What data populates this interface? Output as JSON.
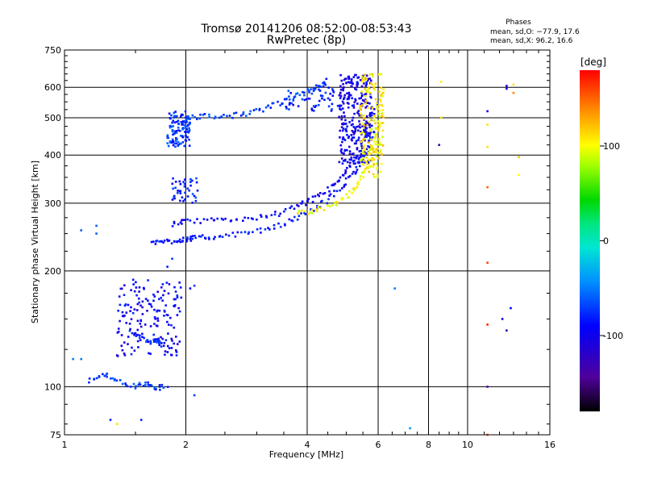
{
  "chart_data": {
    "type": "scatter",
    "title": "Tromsø 20141206 08:52:00-08:53:43",
    "subtitle": "RwPretec (8p)",
    "xlabel": "Frequency [MHz]",
    "ylabel": "Stationary phase Virtual Height [km]",
    "x_scale": "log",
    "y_scale": "log",
    "xlim": [
      1,
      16
    ],
    "ylim": [
      75,
      750
    ],
    "x_ticks": [
      1,
      2,
      4,
      6,
      8,
      10,
      16
    ],
    "x_tick_labels": [
      "1",
      "2",
      "4",
      "6",
      "8",
      "10",
      "16"
    ],
    "y_ticks": [
      75,
      100,
      200,
      300,
      400,
      500,
      600,
      750
    ],
    "y_tick_labels": [
      "75",
      "100",
      "200",
      "300",
      "400",
      "500",
      "600",
      "750"
    ],
    "grid": true,
    "stats": {
      "header": "Phases",
      "line1": "mean, sd,O: −77.9, 17.6",
      "line2": "mean, sd,X:  96.2, 16.6"
    },
    "colorbar": {
      "label": "[deg]",
      "range": [
        -180,
        180
      ],
      "ticks": [
        100,
        0,
        -100
      ],
      "tick_labels": [
        "100",
        "0",
        "-100"
      ]
    },
    "series": [
      {
        "traces": [
          {
            "x": [
              1.65,
              1.75,
              1.9,
              2.0,
              2.1,
              2.3,
              2.6,
              3.0,
              3.4,
              3.8,
              4.2,
              4.6,
              5.0,
              5.3,
              5.6,
              5.9
            ],
            "y": [
              237,
              238,
              240,
              242,
              243,
              245,
              248,
              253,
              262,
              275,
              292,
              312,
              340,
              370,
              410,
              470
            ],
            "phase": -85
          },
          {
            "x": [
              1.85,
              2.0,
              2.3,
              2.6,
              3.0,
              3.4,
              3.8,
              4.1,
              4.5,
              4.8,
              5.1,
              5.4,
              5.7,
              6.0
            ],
            "y": [
              265,
              268,
              270,
              272,
              275,
              282,
              295,
              305,
              325,
              345,
              370,
              410,
              470,
              560
            ],
            "phase": -95
          },
          {
            "x": [
              2.0,
              2.2,
              2.5,
              2.8,
              3.1,
              3.4,
              3.7,
              4.0,
              4.3,
              4.5
            ],
            "y": [
              500,
              505,
              505,
              510,
              525,
              545,
              565,
              585,
              605,
              625
            ],
            "phase": -70
          },
          {
            "x": [
              1.45,
              1.55,
              1.65,
              1.7,
              1.75
            ],
            "y": [
              140,
              135,
              130,
              132,
              128
            ],
            "phase": -80
          },
          {
            "x": [
              1.15,
              1.25,
              1.35,
              1.5,
              1.6,
              1.7,
              1.8
            ],
            "y": [
              104,
              108,
              103,
              100,
              102,
              99,
              101
            ],
            "phase": -70
          }
        ],
        "clusters": [
          {
            "x": [
              1.8,
              2.05
            ],
            "y": [
              420,
              520
            ],
            "n": 120,
            "phase": -75
          },
          {
            "x": [
              1.85,
              2.15
            ],
            "y": [
              300,
              350
            ],
            "n": 40,
            "phase": -80
          },
          {
            "x": [
              1.35,
              1.95
            ],
            "y": [
              120,
              190
            ],
            "n": 160,
            "phase": -95
          },
          {
            "x": [
              4.8,
              5.8
            ],
            "y": [
              380,
              650
            ],
            "n": 280,
            "phase": -100
          },
          {
            "x": [
              3.5,
              4.8
            ],
            "y": [
              520,
              600
            ],
            "n": 50,
            "phase": -80
          }
        ]
      },
      {
        "traces": [
          {
            "x": [
              3.8,
              4.2,
              4.6,
              5.0,
              5.3,
              5.5,
              5.7,
              5.9,
              6.05,
              6.15
            ],
            "y": [
              282,
              288,
              296,
              310,
              330,
              355,
              390,
              440,
              510,
              610
            ],
            "phase": 100
          }
        ],
        "clusters": [
          {
            "x": [
              5.4,
              6.2
            ],
            "y": [
              350,
              650
            ],
            "n": 150,
            "phase": 105
          }
        ]
      }
    ],
    "sparse_points": [
      {
        "x": 8.6,
        "y": 620,
        "phase": 105
      },
      {
        "x": 8.6,
        "y": 500,
        "phase": 110
      },
      {
        "x": 8.5,
        "y": 425,
        "phase": -120
      },
      {
        "x": 12.5,
        "y": 605,
        "phase": -100
      },
      {
        "x": 12.5,
        "y": 595,
        "phase": -100
      },
      {
        "x": 11.2,
        "y": 520,
        "phase": -100
      },
      {
        "x": 11.2,
        "y": 480,
        "phase": 110
      },
      {
        "x": 11.2,
        "y": 420,
        "phase": 110
      },
      {
        "x": 11.2,
        "y": 330,
        "phase": 150
      },
      {
        "x": 11.2,
        "y": 210,
        "phase": 160
      },
      {
        "x": 11.2,
        "y": 145,
        "phase": 170
      },
      {
        "x": 11.2,
        "y": 100,
        "phase": -140
      },
      {
        "x": 11.2,
        "y": 75,
        "phase": 155
      },
      {
        "x": 13.0,
        "y": 610,
        "phase": 110
      },
      {
        "x": 13.0,
        "y": 580,
        "phase": 140
      },
      {
        "x": 13.4,
        "y": 395,
        "phase": 120
      },
      {
        "x": 13.4,
        "y": 355,
        "phase": 100
      },
      {
        "x": 12.2,
        "y": 150,
        "phase": -100
      },
      {
        "x": 12.8,
        "y": 160,
        "phase": -90
      },
      {
        "x": 12.5,
        "y": 140,
        "phase": -130
      },
      {
        "x": 6.6,
        "y": 180,
        "phase": -50
      },
      {
        "x": 7.2,
        "y": 78,
        "phase": -40
      },
      {
        "x": 1.1,
        "y": 255,
        "phase": -60
      },
      {
        "x": 1.2,
        "y": 262,
        "phase": -60
      },
      {
        "x": 1.2,
        "y": 250,
        "phase": -60
      },
      {
        "x": 1.35,
        "y": 80,
        "phase": 110
      },
      {
        "x": 1.3,
        "y": 82,
        "phase": -80
      },
      {
        "x": 1.05,
        "y": 118,
        "phase": -50
      },
      {
        "x": 1.1,
        "y": 118,
        "phase": -50
      },
      {
        "x": 1.55,
        "y": 82,
        "phase": -80
      },
      {
        "x": 2.05,
        "y": 180,
        "phase": -90
      },
      {
        "x": 2.1,
        "y": 183,
        "phase": -70
      },
      {
        "x": 1.8,
        "y": 205,
        "phase": -80
      },
      {
        "x": 1.85,
        "y": 215,
        "phase": -70
      },
      {
        "x": 2.1,
        "y": 95,
        "phase": -70
      }
    ]
  }
}
